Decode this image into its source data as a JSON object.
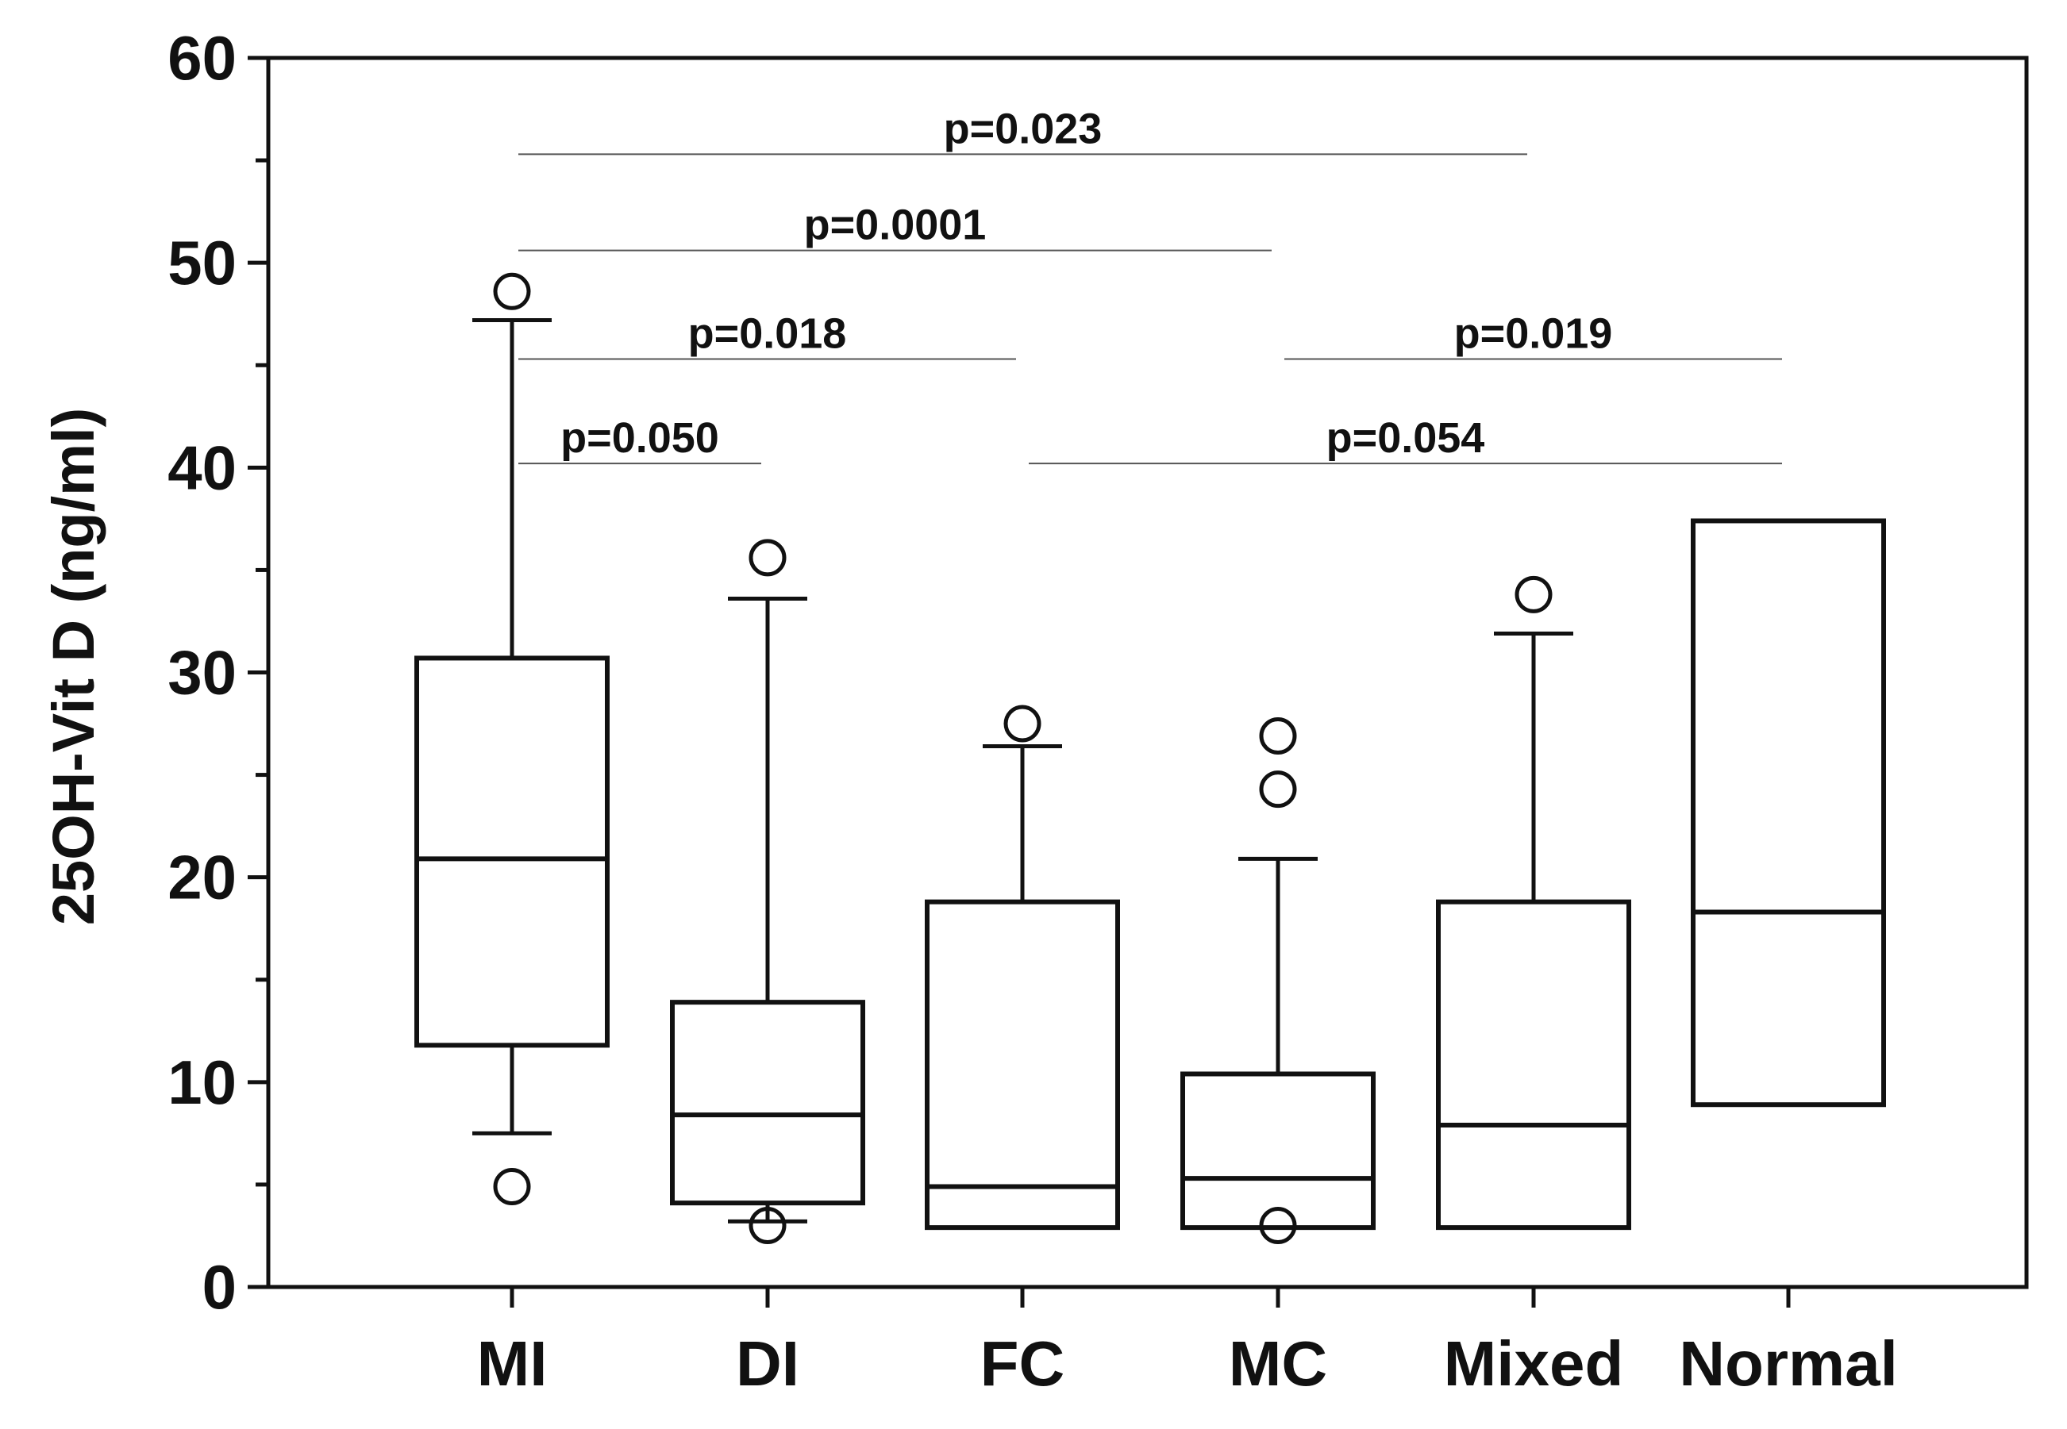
{
  "chart_data": {
    "type": "boxplot",
    "title": "",
    "xlabel": "",
    "ylabel": "25OH-Vit D  (ng/ml)",
    "ylim": [
      0,
      60
    ],
    "yticks": [
      0,
      10,
      20,
      30,
      40,
      50,
      60
    ],
    "grid": false,
    "colors": {
      "line": "#111111",
      "box_fill": "#ffffff",
      "bracket": "#555555"
    },
    "categories": [
      "MI",
      "DI",
      "FC",
      "MC",
      "Mixed",
      "Normal"
    ],
    "boxes": [
      {
        "category": "MI",
        "whisker_low": 7.5,
        "q1": 11.8,
        "median": 20.9,
        "q3": 30.7,
        "whisker_high": 47.2,
        "outliers": [
          48.6,
          4.9
        ]
      },
      {
        "category": "DI",
        "whisker_low": 3.2,
        "q1": 4.1,
        "median": 8.4,
        "q3": 13.9,
        "whisker_high": 33.6,
        "outliers": [
          35.6,
          3.0
        ]
      },
      {
        "category": "FC",
        "whisker_low": null,
        "q1": 2.9,
        "median": 4.9,
        "q3": 18.8,
        "whisker_high": 26.4,
        "outliers": [
          27.5
        ]
      },
      {
        "category": "MC",
        "whisker_low": null,
        "q1": 2.9,
        "median": 5.3,
        "q3": 10.4,
        "whisker_high": 20.9,
        "outliers": [
          26.9,
          24.3,
          3.0
        ]
      },
      {
        "category": "Mixed",
        "whisker_low": null,
        "q1": 2.9,
        "median": 7.9,
        "q3": 18.8,
        "whisker_high": 31.9,
        "outliers": [
          33.8
        ]
      },
      {
        "category": "Normal",
        "whisker_low": null,
        "q1": 8.9,
        "median": 18.3,
        "q3": 37.4,
        "whisker_high": null,
        "outliers": []
      }
    ],
    "comparisons": [
      {
        "from": "MI",
        "to": "Mixed",
        "y": 55.3,
        "label": "p=0.023"
      },
      {
        "from": "MI",
        "to": "MC",
        "y": 50.6,
        "label": "p=0.0001"
      },
      {
        "from": "MI",
        "to": "FC",
        "y": 45.3,
        "label": "p=0.018"
      },
      {
        "from": "MI",
        "to": "DI",
        "y": 40.2,
        "label": "p=0.050"
      },
      {
        "from": "MC",
        "to": "Normal",
        "y": 45.3,
        "label": "p=0.019"
      },
      {
        "from": "FC",
        "to": "Normal",
        "y": 40.2,
        "label": "p=0.054"
      }
    ]
  }
}
